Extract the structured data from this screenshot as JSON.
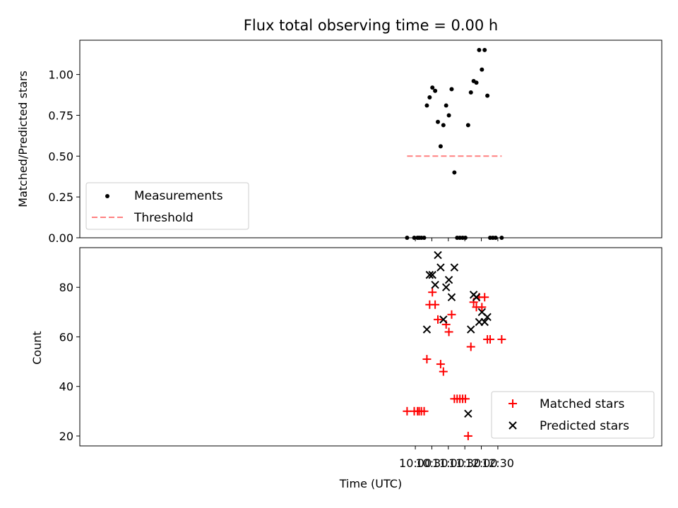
{
  "chart_data": [
    {
      "type": "scatter",
      "title": "Flux total observing time = 0.00 h",
      "xlabel": "",
      "ylabel": "Matched/Predicted stars",
      "ylim": [
        0,
        1.21
      ],
      "xlim": [
        -10,
        1048
      ],
      "yticks": [
        0.0,
        0.25,
        0.5,
        0.75,
        1.0
      ],
      "ytick_labels": [
        "0.00",
        "0.25",
        "0.50",
        "0.75",
        "1.00"
      ],
      "xticks": [
        600,
        630,
        660,
        690,
        720,
        750
      ],
      "legend_position": "lower-left",
      "series": [
        {
          "name": "Measurements",
          "marker": "dot",
          "color": "#000000",
          "x": [
            585,
            598,
            604,
            607,
            611,
            616,
            621,
            626,
            631,
            636,
            641,
            646,
            651,
            656,
            661,
            666,
            671,
            676,
            681,
            686,
            691,
            696,
            701,
            706,
            711,
            716,
            721,
            726,
            731,
            736,
            741,
            746,
            757
          ],
          "y": [
            0.0,
            0.0,
            0.0,
            0.0,
            0.0,
            0.0,
            0.81,
            0.86,
            0.92,
            0.9,
            0.71,
            0.56,
            0.69,
            0.81,
            0.75,
            0.91,
            0.4,
            0.0,
            0.0,
            0.0,
            0.0,
            0.69,
            0.89,
            0.96,
            0.95,
            1.15,
            1.03,
            1.15,
            0.87,
            0.0,
            0.0,
            0.0,
            0.0
          ]
        },
        {
          "name": "Threshold",
          "type": "line",
          "style": "dashed",
          "color": "#ff8080",
          "x": [
            585,
            757
          ],
          "y": [
            0.5,
            0.5
          ]
        }
      ]
    },
    {
      "type": "scatter",
      "title": "",
      "xlabel": "Time (UTC)",
      "ylabel": "Count",
      "ylim": [
        16,
        96
      ],
      "yticks": [
        20,
        40,
        60,
        80
      ],
      "ytick_labels": [
        "20",
        "40",
        "60",
        "80"
      ],
      "xticks": [
        600,
        630,
        660,
        690,
        720,
        750
      ],
      "xtick_labels": [
        "10:00",
        "10:30",
        "11:00",
        "11:30",
        "12:00",
        "12:30"
      ],
      "legend_position": "lower-right",
      "series": [
        {
          "name": "Matched stars",
          "marker": "plus",
          "color": "#ff0000",
          "x": [
            585,
            598,
            604,
            607,
            611,
            616,
            621,
            626,
            631,
            636,
            641,
            646,
            651,
            656,
            661,
            666,
            671,
            676,
            681,
            686,
            691,
            696,
            701,
            706,
            711,
            716,
            721,
            726,
            731,
            736,
            757
          ],
          "y": [
            30,
            30,
            30,
            30,
            30,
            30,
            51,
            73,
            78,
            73,
            67,
            49,
            46,
            65,
            62,
            69,
            35,
            35,
            35,
            35,
            35,
            20,
            56,
            74,
            72,
            76,
            72,
            76,
            59,
            59,
            59
          ]
        },
        {
          "name": "Predicted stars",
          "marker": "x",
          "color": "#000000",
          "x": [
            621,
            626,
            631,
            636,
            641,
            646,
            651,
            656,
            661,
            666,
            671,
            696,
            701,
            706,
            711,
            716,
            721,
            726,
            731
          ],
          "y": [
            63,
            85,
            85,
            81,
            93,
            88,
            67,
            80,
            83,
            76,
            88,
            29,
            63,
            77,
            76,
            66,
            70,
            66,
            68
          ]
        }
      ]
    }
  ]
}
